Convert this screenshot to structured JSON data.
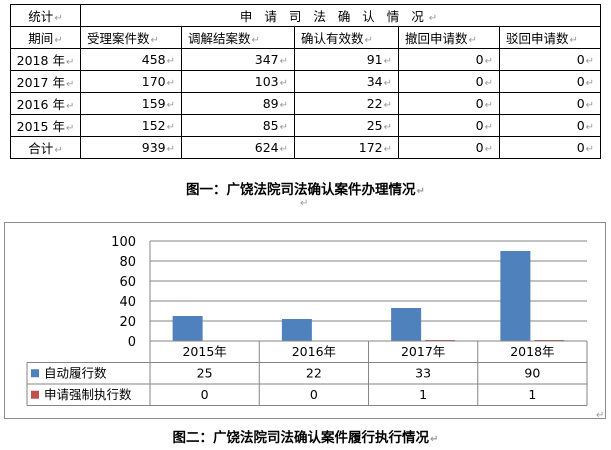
{
  "table1": {
    "corner_top": "统计",
    "corner_bottom": "期间",
    "span_header": "申 请 司 法 确 认 情 况",
    "columns": [
      "受理案件数",
      "调解结案数",
      "确认有效数",
      "撤回申请数",
      "驳回申请数"
    ],
    "rows": [
      {
        "label": "2018 年",
        "values": [
          "458",
          "347",
          "91",
          "0",
          "0"
        ]
      },
      {
        "label": "2017 年",
        "values": [
          "170",
          "103",
          "34",
          "0",
          "0"
        ]
      },
      {
        "label": "2016 年",
        "values": [
          "159",
          "89",
          "22",
          "0",
          "0"
        ]
      },
      {
        "label": "2015 年",
        "values": [
          "152",
          "85",
          "25",
          "0",
          "0"
        ]
      },
      {
        "label": "合计",
        "values": [
          "939",
          "624",
          "172",
          "0",
          "0"
        ]
      }
    ]
  },
  "caption1": "图一：广饶法院司法确认案件办理情况",
  "caption2": "图二：广饶法院司法确认案件履行执行情况",
  "paragraph_mark": "↵",
  "enter_mark": "↵",
  "chart_data": {
    "type": "bar",
    "categories": [
      "2015年",
      "2016年",
      "2017年",
      "2018年"
    ],
    "series": [
      {
        "name": "自动履行数",
        "values": [
          25,
          22,
          33,
          90
        ],
        "color": "#4f81bd"
      },
      {
        "name": "申请强制执行数",
        "values": [
          0,
          0,
          1,
          1
        ],
        "color": "#c0504d"
      }
    ],
    "yticks": [
      "0",
      "20",
      "40",
      "60",
      "80",
      "100"
    ],
    "ylim": [
      0,
      100
    ],
    "grid": true,
    "legend": "data-table-left"
  },
  "colors": {
    "series1": "#4f81bd",
    "series2": "#c0504d",
    "grid": "#868686",
    "border": "#8c8c8c"
  }
}
